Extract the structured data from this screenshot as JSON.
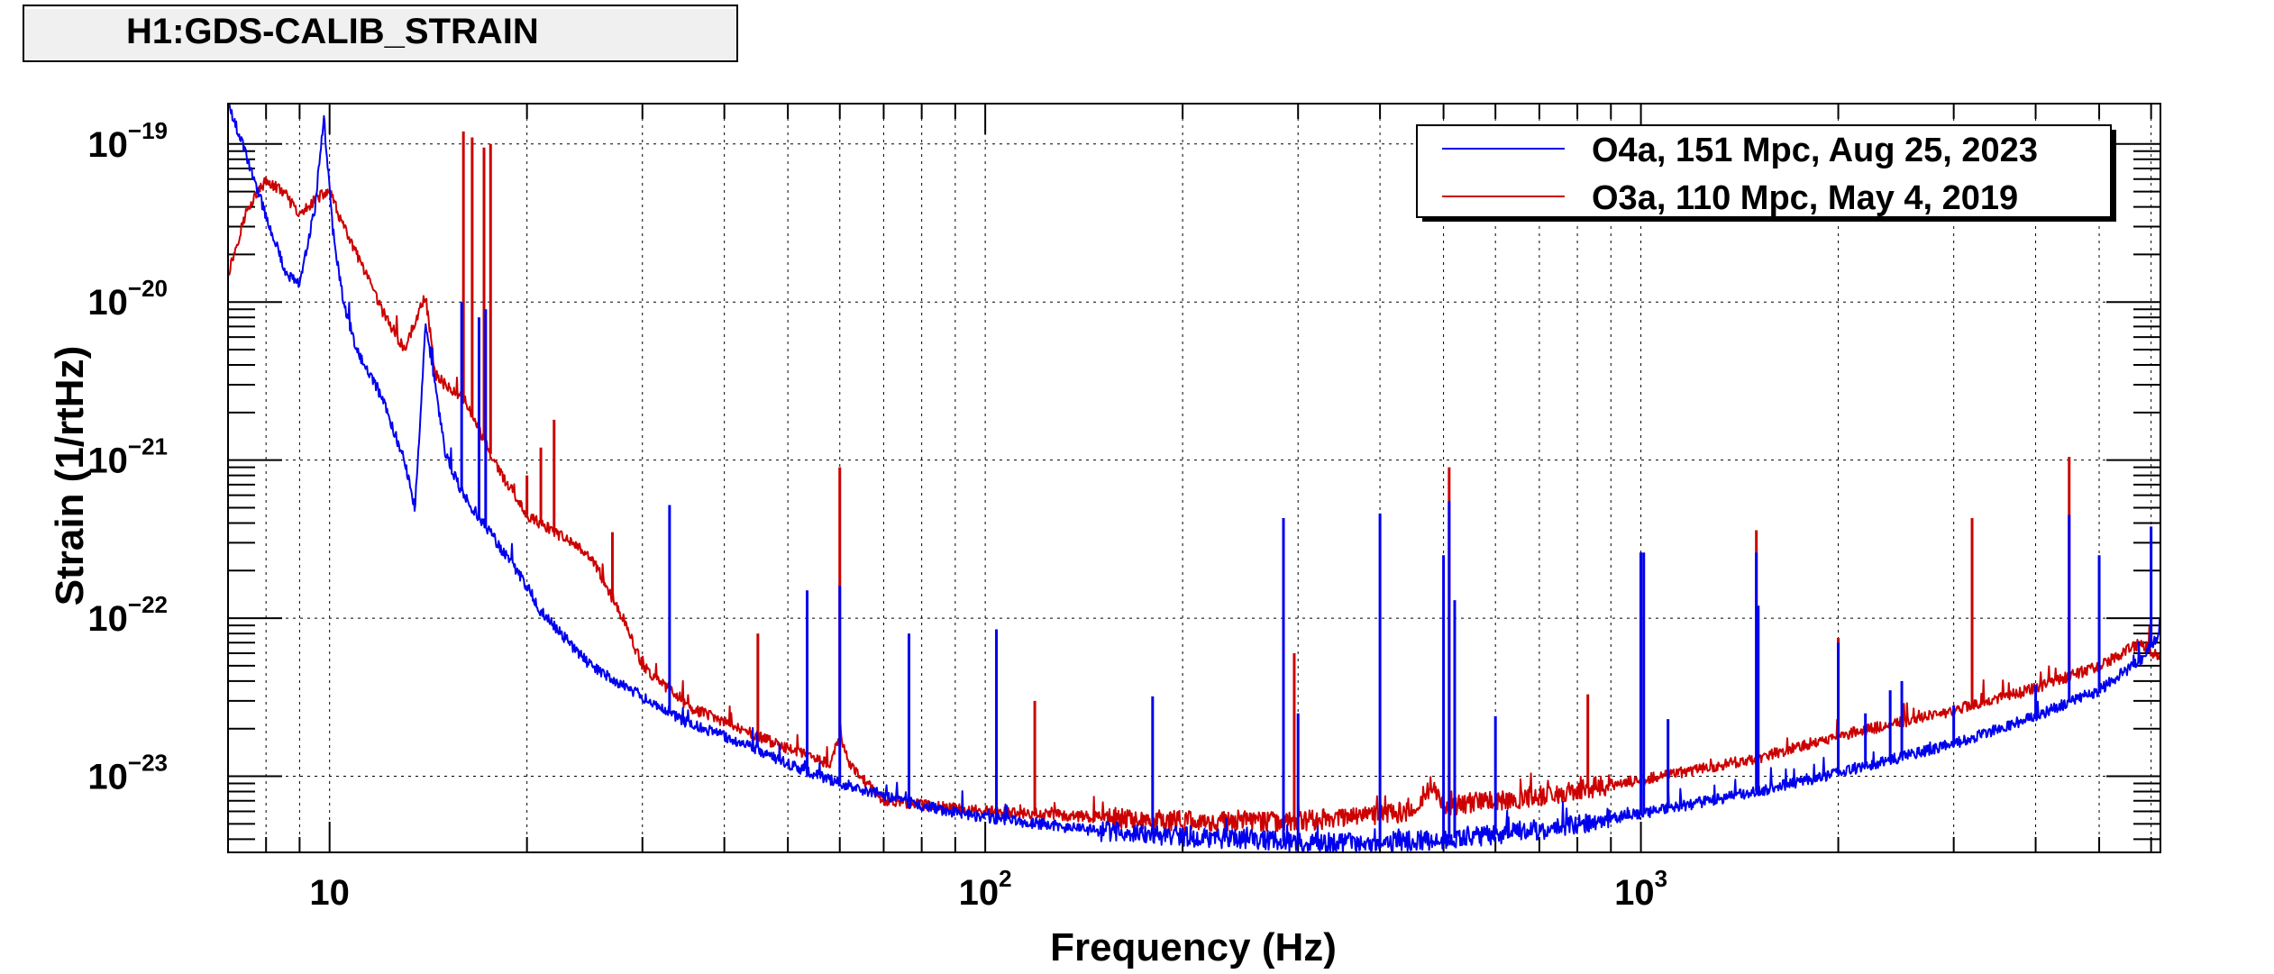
{
  "chart_data": {
    "type": "line",
    "title": "H1:GDS-CALIB_STRAIN",
    "xlabel": "Frequency (Hz)",
    "ylabel": "Strain (1/rtHz)",
    "x_scale": "log",
    "y_scale": "log",
    "xlim": [
      7,
      6200
    ],
    "ylim": [
      3.3e-24,
      1.8e-19
    ],
    "grid": true,
    "legend_position": "top-right",
    "x_ticks": [
      {
        "value": 10,
        "base": "10",
        "exp": ""
      },
      {
        "value": 100,
        "base": "10",
        "exp": "2"
      },
      {
        "value": 1000,
        "base": "10",
        "exp": "3"
      }
    ],
    "y_ticks": [
      {
        "value": 1e-19,
        "base": "10",
        "exp": "−19"
      },
      {
        "value": 1e-20,
        "base": "10",
        "exp": "−20"
      },
      {
        "value": 1e-21,
        "base": "10",
        "exp": "−21"
      },
      {
        "value": 1e-22,
        "base": "10",
        "exp": "−22"
      },
      {
        "value": 1e-23,
        "base": "10",
        "exp": "−23"
      }
    ],
    "series": [
      {
        "name": "O4a, 151 Mpc, Aug 25, 2023",
        "color": "#0000ee",
        "baseline": [
          [
            7,
            1.8e-19
          ],
          [
            7.5,
            8e-20
          ],
          [
            8,
            3.5e-20
          ],
          [
            8.6,
            1.5e-20
          ],
          [
            9,
            1.3e-20
          ],
          [
            9.5,
            4e-20
          ],
          [
            9.8,
            1.5e-19
          ],
          [
            10.1,
            3e-20
          ],
          [
            10.5,
            1e-20
          ],
          [
            11,
            5e-21
          ],
          [
            12,
            2.5e-21
          ],
          [
            13,
            1e-21
          ],
          [
            13.5,
            5e-22
          ],
          [
            14,
            7e-21
          ],
          [
            14.5,
            3e-21
          ],
          [
            15,
            1.1e-21
          ],
          [
            16,
            6e-22
          ],
          [
            18,
            3e-22
          ],
          [
            20,
            1.6e-22
          ],
          [
            21,
            1.1e-22
          ],
          [
            25,
            5e-23
          ],
          [
            30,
            3.2e-23
          ],
          [
            35,
            2.2e-23
          ],
          [
            40,
            1.8e-23
          ],
          [
            50,
            1.2e-23
          ],
          [
            60,
            9e-24
          ],
          [
            80,
            6.5e-24
          ],
          [
            100,
            5.5e-24
          ],
          [
            150,
            4.5e-24
          ],
          [
            200,
            4.2e-24
          ],
          [
            300,
            3.8e-24
          ],
          [
            400,
            3.8e-24
          ],
          [
            500,
            4e-24
          ],
          [
            700,
            4.6e-24
          ],
          [
            1000,
            5.8e-24
          ],
          [
            1500,
            8e-24
          ],
          [
            2000,
            1.05e-23
          ],
          [
            3000,
            1.6e-23
          ],
          [
            4000,
            2.4e-23
          ],
          [
            5000,
            3.5e-23
          ],
          [
            5800,
            5.5e-23
          ],
          [
            6200,
            8e-23
          ]
        ],
        "peaks": [
          [
            15.9,
            1e-20
          ],
          [
            16.9,
            8e-21
          ],
          [
            17.3,
            9e-21
          ],
          [
            33,
            5.2e-22
          ],
          [
            53.5,
            1.5e-22
          ],
          [
            60,
            1.6e-22
          ],
          [
            76.5,
            8e-23
          ],
          [
            104,
            8.5e-23
          ],
          [
            180,
            3.2e-23
          ],
          [
            285,
            4.3e-22
          ],
          [
            300,
            2.5e-23
          ],
          [
            400,
            4.6e-22
          ],
          [
            500,
            2.5e-22
          ],
          [
            510,
            5.5e-22
          ],
          [
            520,
            1.3e-22
          ],
          [
            600,
            2.4e-23
          ],
          [
            1000,
            2.6e-22
          ],
          [
            1010,
            2.6e-22
          ],
          [
            1100,
            2.3e-23
          ],
          [
            1500,
            2.6e-22
          ],
          [
            1510,
            1.2e-22
          ],
          [
            2000,
            7e-23
          ],
          [
            2200,
            2.5e-23
          ],
          [
            2400,
            3.5e-23
          ],
          [
            2500,
            4e-23
          ],
          [
            3000,
            2.8e-23
          ],
          [
            4000,
            3.8e-23
          ],
          [
            4500,
            4.5e-22
          ],
          [
            5000,
            2.5e-22
          ],
          [
            6000,
            3.8e-22
          ]
        ]
      },
      {
        "name": "O3a, 110 Mpc, May 4, 2019",
        "color": "#cc0000",
        "baseline": [
          [
            7,
            1.5e-20
          ],
          [
            7.5,
            4e-20
          ],
          [
            8,
            5.8e-20
          ],
          [
            8.5,
            5e-20
          ],
          [
            9,
            3.5e-20
          ],
          [
            9.5,
            4.5e-20
          ],
          [
            10,
            5e-20
          ],
          [
            10.5,
            3e-20
          ],
          [
            11,
            2e-20
          ],
          [
            12,
            9e-21
          ],
          [
            13,
            5e-21
          ],
          [
            14,
            1.1e-20
          ],
          [
            14.5,
            3.5e-21
          ],
          [
            15,
            3e-21
          ],
          [
            16,
            2.5e-21
          ],
          [
            18,
            9e-22
          ],
          [
            20,
            4.5e-22
          ],
          [
            25,
            2.5e-22
          ],
          [
            28,
            1e-22
          ],
          [
            30,
            5e-23
          ],
          [
            35,
            2.8e-23
          ],
          [
            40,
            2.2e-23
          ],
          [
            50,
            1.5e-23
          ],
          [
            55,
            1.3e-23
          ],
          [
            58,
            1.2e-23
          ],
          [
            60,
            1.8e-23
          ],
          [
            62,
            1.2e-23
          ],
          [
            70,
            7e-24
          ],
          [
            100,
            6e-24
          ],
          [
            150,
            5.5e-24
          ],
          [
            200,
            5.2e-24
          ],
          [
            300,
            5.2e-24
          ],
          [
            400,
            5.8e-24
          ],
          [
            450,
            6e-24
          ],
          [
            480,
            9e-24
          ],
          [
            500,
            6.5e-24
          ],
          [
            700,
            7.5e-24
          ],
          [
            1000,
            9.5e-24
          ],
          [
            1500,
            1.3e-23
          ],
          [
            2000,
            1.8e-23
          ],
          [
            3000,
            2.6e-23
          ],
          [
            4000,
            3.6e-23
          ],
          [
            5000,
            5e-23
          ],
          [
            5800,
            7e-23
          ],
          [
            6200,
            5.5e-23
          ]
        ],
        "peaks": [
          [
            16,
            1.2e-19
          ],
          [
            16.5,
            1.1e-19
          ],
          [
            17.2,
            9.5e-20
          ],
          [
            17.6,
            1e-19
          ],
          [
            20,
            8e-22
          ],
          [
            21,
            1.2e-21
          ],
          [
            22,
            1.8e-21
          ],
          [
            27,
            3.5e-22
          ],
          [
            45,
            8e-23
          ],
          [
            60,
            9e-22
          ],
          [
            119,
            3e-23
          ],
          [
            296,
            6e-23
          ],
          [
            510,
            9e-22
          ],
          [
            830,
            3.3e-23
          ],
          [
            1000,
            2.6e-22
          ],
          [
            1500,
            3.6e-22
          ],
          [
            2000,
            7.5e-23
          ],
          [
            3200,
            4.3e-22
          ],
          [
            4500,
            1.05e-21
          ],
          [
            5000,
            4.5e-23
          ]
        ]
      }
    ]
  }
}
